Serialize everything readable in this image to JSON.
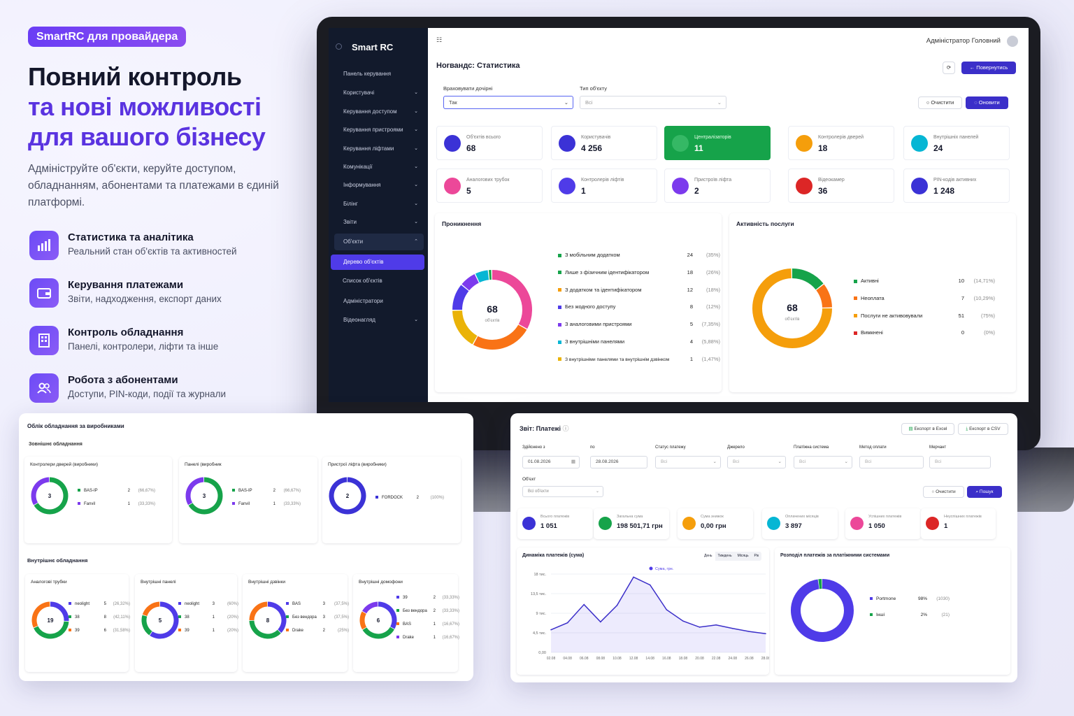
{
  "promo": {
    "badge": "SmartRC для провайдера",
    "headline1": "Повний контроль",
    "headline2": "та нові можливості",
    "headline3": "для вашого бізнесу",
    "subtitle": "Адмініструйте об'єкти, керуйте доступом, обладнанням, абонентами та платежами в єдиній платформі.",
    "features": [
      {
        "title": "Статистика та аналітика",
        "desc": "Реальний стан об'єктів та активностей"
      },
      {
        "title": "Керування платежами",
        "desc": "Звіти, надходження, експорт даних"
      },
      {
        "title": "Контроль обладнання",
        "desc": "Панелі, контролери, ліфти та інше"
      },
      {
        "title": "Робота з абонентами",
        "desc": "Доступи, PIN-коди, події та журнали"
      }
    ]
  },
  "app": {
    "brand": "Smart RC",
    "user": "Адміністратор Головний",
    "sidebar": [
      {
        "label": "Панель керування"
      },
      {
        "label": "Користувачі"
      },
      {
        "label": "Керування доступом"
      },
      {
        "label": "Керування пристроями"
      },
      {
        "label": "Керування ліфтами"
      },
      {
        "label": "Комунікації"
      },
      {
        "label": "Інформування"
      },
      {
        "label": "Білінг"
      },
      {
        "label": "Звіти"
      },
      {
        "label": "Об'єкти"
      },
      {
        "label": "Дерево об'єктів"
      },
      {
        "label": "Список об'єктів"
      },
      {
        "label": "Адміністратори"
      },
      {
        "label": "Відеонагляд"
      }
    ],
    "page_title": "Ноrвандс: Статистика",
    "back_btn": "Повернутись",
    "filter1_label": "Враховувати дочірні",
    "filter1_value": "Так",
    "filter2_label": "Тип об'єкту",
    "filter2_value": "Всі",
    "clear_btn": "Очистити",
    "refresh_btn": "Оновити",
    "stats": [
      {
        "label": "Об'єктів всього",
        "value": "68",
        "color": "#3b32d6"
      },
      {
        "label": "Користувачів",
        "value": "4 256",
        "color": "#3b32d6"
      },
      {
        "label": "Централізаторів",
        "value": "11",
        "color": "#16a34a"
      },
      {
        "label": "Контролерів дверей",
        "value": "18",
        "color": "#f59e0b"
      },
      {
        "label": "Внутрішніх панелей",
        "value": "24",
        "color": "#06b6d4"
      },
      {
        "label": "Аналогових трубок",
        "value": "5",
        "color": "#ec4899"
      },
      {
        "label": "Контролерів ліфтів",
        "value": "1",
        "color": "#4f3be8"
      },
      {
        "label": "Пристроїв ліфта",
        "value": "2",
        "color": "#7c3aed"
      },
      {
        "label": "Відеокамер",
        "value": "36",
        "color": "#dc2626"
      },
      {
        "label": "PIN-кодів активних",
        "value": "1 248",
        "color": "#3b32d6"
      }
    ],
    "penetration": {
      "title": "Проникнення",
      "total": "68",
      "unit": "об'єктів",
      "items": [
        {
          "label": "З мобільним додатком",
          "count": "24",
          "pct": "(35%)",
          "color": "#16a34a"
        },
        {
          "label": "Лише з фізичним ідентифікатором",
          "count": "18",
          "pct": "(26%)",
          "color": "#16a34a"
        },
        {
          "label": "З додатком та ідентифікатором",
          "count": "12",
          "pct": "(18%)",
          "color": "#f59e0b"
        },
        {
          "label": "Без жодного доступу",
          "count": "8",
          "pct": "(12%)",
          "color": "#4f3be8"
        },
        {
          "label": "З аналоговими пристроями",
          "count": "5",
          "pct": "(7,35%)",
          "color": "#7c3aed"
        },
        {
          "label": "З внутрішніми панелями",
          "count": "4",
          "pct": "(5,88%)",
          "color": "#06b6d4"
        },
        {
          "label": "З внутрішніми панелями та внутрішнім дзвінком",
          "count": "1",
          "pct": "(1,47%)",
          "color": "#eab308"
        }
      ]
    },
    "activity": {
      "title": "Активність послуги",
      "total": "68",
      "unit": "об'єктів",
      "items": [
        {
          "label": "Активні",
          "count": "10",
          "pct": "(14,71%)",
          "color": "#16a34a"
        },
        {
          "label": "Неоплата",
          "count": "7",
          "pct": "(10,29%)",
          "color": "#f97316"
        },
        {
          "label": "Послуги не активовували",
          "count": "51",
          "pct": "(75%)",
          "color": "#f59e0b"
        },
        {
          "label": "Вимкнені",
          "count": "0",
          "pct": "(0%)",
          "color": "#dc2626"
        }
      ]
    }
  },
  "equipment": {
    "title": "Облік обладнання за виробниками",
    "external": "Зовнішнє обладнання",
    "internal": "Внутрішнє обладнання",
    "ext_cards": [
      {
        "title": "Контролери дверей (виробники)",
        "total": "3",
        "rows": [
          {
            "name": "BAS-IP",
            "count": "2",
            "pct": "(66,67%)"
          },
          {
            "name": "Fanvil",
            "count": "1",
            "pct": "(33,33%)"
          }
        ]
      },
      {
        "title": "Панелі (виробник",
        "total": "3",
        "rows": [
          {
            "name": "BAS-IP",
            "count": "2",
            "pct": "(66,67%)"
          },
          {
            "name": "Fanvil",
            "count": "1",
            "pct": "(33,33%)"
          }
        ]
      },
      {
        "title": "Пристрої ліфта (виробники)",
        "total": "2",
        "rows": [
          {
            "name": "FORDOCK",
            "count": "2",
            "pct": "(100%)"
          }
        ]
      }
    ],
    "int_cards": [
      {
        "title": "Аналогові трубки",
        "total": "19",
        "rows": [
          {
            "name": "neolight",
            "count": "5",
            "pct": "(26,32%)"
          },
          {
            "name": "38",
            "count": "8",
            "pct": "(42,11%)"
          },
          {
            "name": "39",
            "count": "6",
            "pct": "(31,58%)"
          }
        ]
      },
      {
        "title": "Внутрішні панелі",
        "total": "5",
        "rows": [
          {
            "name": "neolight",
            "count": "3",
            "pct": "(60%)"
          },
          {
            "name": "38",
            "count": "1",
            "pct": "(20%)"
          },
          {
            "name": "39",
            "count": "1",
            "pct": "(20%)"
          }
        ]
      },
      {
        "title": "Внутрішні дзвінки",
        "total": "8",
        "rows": [
          {
            "name": "BAS",
            "count": "3",
            "pct": "(37,5%)"
          },
          {
            "name": "Без вендора",
            "count": "3",
            "pct": "(37,5%)"
          },
          {
            "name": "Drake",
            "count": "2",
            "pct": "(25%)"
          }
        ]
      },
      {
        "title": "Внутрішні домофони",
        "total": "6",
        "rows": [
          {
            "name": "39",
            "count": "2",
            "pct": "(33,33%)"
          },
          {
            "name": "Без вендора",
            "count": "2",
            "pct": "(33,33%)"
          },
          {
            "name": "BAS",
            "count": "1",
            "pct": "(16,67%)"
          },
          {
            "name": "Drake",
            "count": "1",
            "pct": "(16,67%)"
          }
        ]
      }
    ]
  },
  "payments": {
    "title": "Звіт: Платежі",
    "export_excel": "Експорт в Excel",
    "export_csv": "Експорт в CSV",
    "f_from_label": "Здійснено з",
    "f_from": "01.08.2026",
    "f_to_label": "по",
    "f_to": "28.08.2026",
    "f_status_label": "Статус платежу",
    "f_source_label": "Джерело",
    "f_system_label": "Платіжна система",
    "f_method_label": "Метод оплати",
    "f_merchant_label": "Мерчант",
    "f_all": "Всі",
    "f_object_label": "Об'єкт",
    "f_object": "Всі об'єкти",
    "clear": "Очистити",
    "search": "Пошук",
    "stats": [
      {
        "label": "Всього платежів",
        "value": "1 051",
        "color": "#3b32d6"
      },
      {
        "label": "Загальна сума",
        "value": "198 501,71 грн",
        "color": "#16a34a"
      },
      {
        "label": "Сума знижок",
        "value": "0,00 грн",
        "color": "#f59e0b"
      },
      {
        "label": "Оплачених місяців",
        "value": "3 897",
        "color": "#06b6d4"
      },
      {
        "label": "Успішних платежів",
        "value": "1 050",
        "color": "#ec4899"
      },
      {
        "label": "Неуспішних платежів",
        "value": "1",
        "color": "#dc2626"
      }
    ],
    "dyn_title": "Динаміка платежів (сума)",
    "tabs": [
      "День",
      "Тиждень",
      "Місяць",
      "Рік"
    ],
    "split_title": "Розподіл платежів за платіжними системами",
    "split": [
      {
        "name": "Portmone",
        "pct": "98%",
        "count": "(1030)",
        "color": "#4f3be8"
      },
      {
        "name": "Інші",
        "pct": "2%",
        "count": "(21)",
        "color": "#16a34a"
      }
    ]
  },
  "chart_data": {
    "type": "line",
    "legend": "Сума, грн.",
    "x": [
      "02.08",
      "04.08",
      "06.08",
      "08.08",
      "10.08",
      "12.08",
      "14.08",
      "16.08",
      "18.08",
      "20.08",
      "22.08",
      "24.08",
      "26.08",
      "28.08"
    ],
    "values": [
      5200,
      6800,
      11000,
      7000,
      10800,
      17300,
      15500,
      9800,
      7200,
      5800,
      6300,
      5500,
      4800,
      4300
    ],
    "yticks": [
      "18 тис.",
      "13,5 тис.",
      "9 тис.",
      "4,5 тис.",
      "0,00"
    ],
    "ylim": [
      0,
      18000
    ]
  }
}
